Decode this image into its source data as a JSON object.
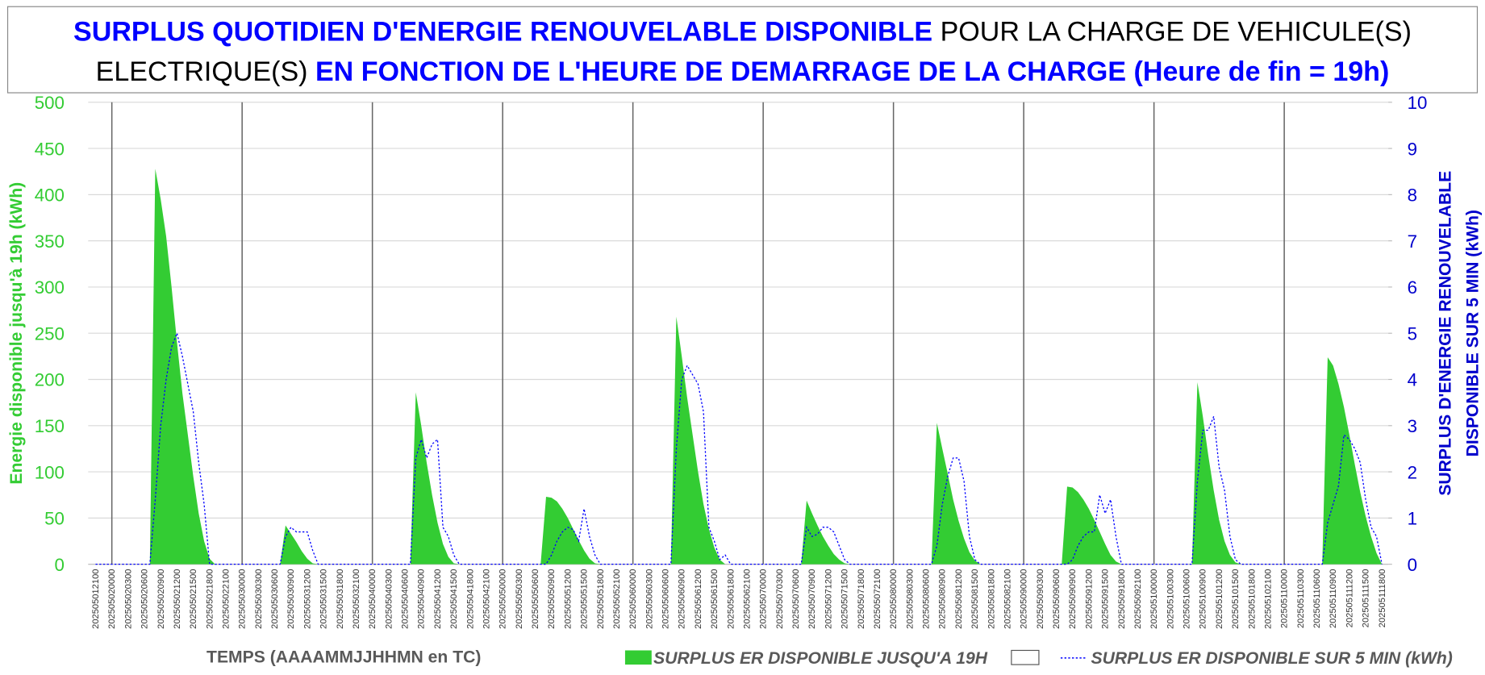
{
  "chart_data": {
    "type": "combo",
    "title": [
      "SURPLUS QUOTIDIEN D'ENERGIE RENOUVELABLE DISPONIBLE",
      "POUR LA CHARGE DE VEHICULE(S)",
      "ELECTRIQUE(S)",
      "EN FONCTION DE L'HEURE DE DEMARRAGE DE LA CHARGE (Heure de fin = 19h)"
    ],
    "title_colors": [
      "#0000ff",
      "#000000",
      "#000000",
      "#0000ff"
    ],
    "x_label": "TEMPS (AAAAMMJJHHMN en TC)",
    "y_label": "Energie disponible jusqu'à 19h (kWh)",
    "y2_label": [
      "SURPLUS D'ENERGIE RENOUVELABLE",
      "DISPONIBLE SUR 5 MIN (kWh)"
    ],
    "ylim": [
      0,
      500
    ],
    "yticks": [
      0,
      50,
      100,
      150,
      200,
      250,
      300,
      350,
      400,
      450,
      500
    ],
    "y2lim": [
      0,
      10
    ],
    "y2ticks": [
      0,
      1,
      2,
      3,
      4,
      5,
      6,
      7,
      8,
      9,
      10
    ],
    "grid": true,
    "legend": "bottom",
    "categories": [
      "202505012100",
      null,
      null,
      "202505020000",
      null,
      null,
      "202505020300",
      null,
      null,
      "202505020600",
      null,
      null,
      "202505020900",
      null,
      null,
      "202505021200",
      null,
      null,
      "202505021500",
      null,
      null,
      "202505021800",
      null,
      null,
      "202505022100",
      null,
      null,
      "202505030000",
      null,
      null,
      "202505030300",
      null,
      null,
      "202505030600",
      null,
      null,
      "202505030900",
      null,
      null,
      "202505031200",
      null,
      null,
      "202505031500",
      null,
      null,
      "202505031800",
      null,
      null,
      "202505032100",
      null,
      null,
      "202505040000",
      null,
      null,
      "202505040300",
      null,
      null,
      "202505040600",
      null,
      null,
      "202505040900",
      null,
      null,
      "202505041200",
      null,
      null,
      "202505041500",
      null,
      null,
      "202505041800",
      null,
      null,
      "202505042100",
      null,
      null,
      "202505050000",
      null,
      null,
      "202505050300",
      null,
      null,
      "202505050600",
      null,
      null,
      "202505050900",
      null,
      null,
      "202505051200",
      null,
      null,
      "202505051500",
      null,
      null,
      "202505051800",
      null,
      null,
      "202505052100",
      null,
      null,
      "202505060000",
      null,
      null,
      "202505060300",
      null,
      null,
      "202505060600",
      null,
      null,
      "202505060900",
      null,
      null,
      "202505061200",
      null,
      null,
      "202505061500",
      null,
      null,
      "202505061800",
      null,
      null,
      "202505062100",
      null,
      null,
      "202505070000",
      null,
      null,
      "202505070300",
      null,
      null,
      "202505070600",
      null,
      null,
      "202505070900",
      null,
      null,
      "202505071200",
      null,
      null,
      "202505071500",
      null,
      null,
      "202505071800",
      null,
      null,
      "202505072100",
      null,
      null,
      "202505080000",
      null,
      null,
      "202505080300",
      null,
      null,
      "202505080600",
      null,
      null,
      "202505080900",
      null,
      null,
      "202505081200",
      null,
      null,
      "202505081500",
      null,
      null,
      "202505081800",
      null,
      null,
      "202505082100",
      null,
      null,
      "202505090000",
      null,
      null,
      "202505090300",
      null,
      null,
      "202505090600",
      null,
      null,
      "202505090900",
      null,
      null,
      "202505091200",
      null,
      null,
      "202505091500",
      null,
      null,
      "202505091800",
      null,
      null,
      "202505092100",
      null,
      null,
      "202505100000",
      null,
      null,
      "202505100300",
      null,
      null,
      "202505100600",
      null,
      null,
      "202505100900",
      null,
      null,
      "202505101200",
      null,
      null,
      "202505101500",
      null,
      null,
      "202505101800",
      null,
      null,
      "202505102100",
      null,
      null,
      "202505110000",
      null,
      null,
      "202505110300",
      null,
      null,
      "202505110600",
      null,
      null,
      "202505110900",
      null,
      null,
      "202505111200",
      null,
      null,
      "202505111500",
      null,
      null,
      "202505111800"
    ],
    "series": [
      {
        "name": "SURPLUS ER DISPONIBLE JUSQU'A 19H",
        "type": "area",
        "axis": "y",
        "color": "#33cc33",
        "values": [
          0,
          0,
          0,
          0,
          0,
          0,
          0,
          0,
          0,
          0,
          0,
          428,
          395,
          355,
          300,
          240,
          185,
          140,
          95,
          55,
          25,
          6,
          0,
          0,
          0,
          0,
          0,
          0,
          0,
          0,
          0,
          0,
          0,
          0,
          0,
          42,
          33,
          24,
          14,
          6,
          1,
          0,
          0,
          0,
          0,
          0,
          0,
          0,
          0,
          0,
          0,
          0,
          0,
          0,
          0,
          0,
          0,
          0,
          0,
          186,
          150,
          110,
          75,
          45,
          22,
          8,
          1,
          0,
          0,
          0,
          0,
          0,
          0,
          0,
          0,
          0,
          0,
          0,
          0,
          0,
          0,
          0,
          0,
          73,
          72,
          68,
          60,
          50,
          38,
          26,
          15,
          6,
          1,
          0,
          0,
          0,
          0,
          0,
          0,
          0,
          0,
          0,
          0,
          0,
          0,
          0,
          0,
          268,
          225,
          180,
          140,
          100,
          65,
          38,
          18,
          5,
          0,
          0,
          0,
          0,
          0,
          0,
          0,
          0,
          0,
          0,
          0,
          0,
          0,
          0,
          0,
          69,
          55,
          42,
          30,
          20,
          11,
          5,
          1,
          0,
          0,
          0,
          0,
          0,
          0,
          0,
          0,
          0,
          0,
          0,
          0,
          0,
          0,
          0,
          0,
          153,
          125,
          98,
          70,
          47,
          28,
          13,
          4,
          0,
          0,
          0,
          0,
          0,
          0,
          0,
          0,
          0,
          0,
          0,
          0,
          0,
          0,
          0,
          0,
          84,
          83,
          78,
          70,
          60,
          48,
          35,
          22,
          10,
          3,
          0,
          0,
          0,
          0,
          0,
          0,
          0,
          0,
          0,
          0,
          0,
          0,
          0,
          0,
          197,
          160,
          118,
          80,
          48,
          25,
          10,
          2,
          0,
          0,
          0,
          0,
          0,
          0,
          0,
          0,
          0,
          0,
          0,
          0,
          0,
          0,
          0,
          0,
          224,
          215,
          195,
          170,
          140,
          108,
          78,
          52,
          30,
          12,
          0
        ]
      },
      {
        "name": "SURPLUS ER DISPONIBLE SUR 5 MIN (kWh)",
        "type": "line",
        "axis": "y2",
        "color": "#0000ff",
        "line_style": "dashed",
        "values": [
          0,
          0,
          0,
          0,
          0,
          0,
          0,
          0,
          0,
          0,
          0,
          1.4,
          3.0,
          4.0,
          4.7,
          5.0,
          4.5,
          3.9,
          3.3,
          2.2,
          1.3,
          0,
          0,
          0,
          0,
          0,
          0,
          0,
          0,
          0,
          0,
          0,
          0,
          0,
          0,
          0.6,
          0.8,
          0.7,
          0.7,
          0.7,
          0.3,
          0,
          0,
          0,
          0,
          0,
          0,
          0,
          0,
          0,
          0,
          0,
          0,
          0,
          0,
          0,
          0,
          0,
          0,
          2.3,
          2.7,
          2.3,
          2.6,
          2.7,
          0.8,
          0.6,
          0.2,
          0,
          0,
          0,
          0,
          0,
          0,
          0,
          0,
          0,
          0,
          0,
          0,
          0,
          0,
          0,
          0,
          0,
          0.2,
          0.5,
          0.7,
          0.8,
          0.75,
          0.5,
          1.2,
          0.6,
          0.2,
          0,
          0,
          0,
          0,
          0,
          0,
          0,
          0,
          0,
          0,
          0,
          0,
          0,
          0,
          2.5,
          4.0,
          4.3,
          4.1,
          3.9,
          3.3,
          0.8,
          0.5,
          0.1,
          0.2,
          0,
          0,
          0,
          0,
          0,
          0,
          0,
          0,
          0,
          0,
          0,
          0,
          0,
          0,
          0.8,
          0.6,
          0.65,
          0.8,
          0.8,
          0.7,
          0.4,
          0.1,
          0,
          0,
          0,
          0,
          0,
          0,
          0,
          0,
          0,
          0,
          0,
          0,
          0,
          0,
          0,
          0,
          0.4,
          1.3,
          1.9,
          2.3,
          2.3,
          1.8,
          0.6,
          0.1,
          0,
          0,
          0,
          0,
          0,
          0,
          0,
          0,
          0,
          0,
          0,
          0,
          0,
          0,
          0,
          0,
          0,
          0.1,
          0.4,
          0.6,
          0.7,
          0.7,
          1.5,
          1.1,
          1.4,
          0.6,
          0,
          0,
          0,
          0,
          0,
          0,
          0,
          0,
          0,
          0,
          0,
          0,
          0,
          0,
          1.8,
          2.9,
          2.9,
          3.2,
          2.1,
          1.6,
          0.6,
          0.1,
          0,
          0,
          0,
          0,
          0,
          0,
          0,
          0,
          0,
          0,
          0,
          0,
          0,
          0,
          0,
          0,
          0.9,
          1.3,
          1.7,
          2.8,
          2.7,
          2.5,
          2.2,
          1.4,
          0.8,
          0.6,
          0
        ]
      }
    ]
  }
}
